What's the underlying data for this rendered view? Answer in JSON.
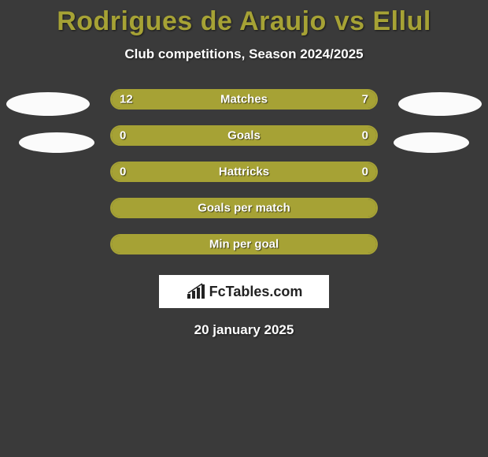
{
  "title_color": "#a6a235",
  "title": "Rodrigues de Araujo vs Ellul",
  "subtitle": "Club competitions, Season 2024/2025",
  "date": "20 january 2025",
  "logo_text_prefix": "Fc",
  "logo_text_suffix": "Tables.com",
  "bar_color": "#a6a235",
  "background_color": "#3a3a3a",
  "bars": [
    {
      "label": "Matches",
      "left": "12",
      "right": "7",
      "left_pct": 63,
      "right_pct": 37
    },
    {
      "label": "Goals",
      "left": "0",
      "right": "0",
      "left_pct": 100,
      "right_pct": 0
    },
    {
      "label": "Hattricks",
      "left": "0",
      "right": "0",
      "left_pct": 100,
      "right_pct": 0
    },
    {
      "label": "Goals per match",
      "left": "",
      "right": "",
      "left_pct": 100,
      "right_pct": 0
    },
    {
      "label": "Min per goal",
      "left": "",
      "right": "",
      "left_pct": 100,
      "right_pct": 0
    }
  ]
}
